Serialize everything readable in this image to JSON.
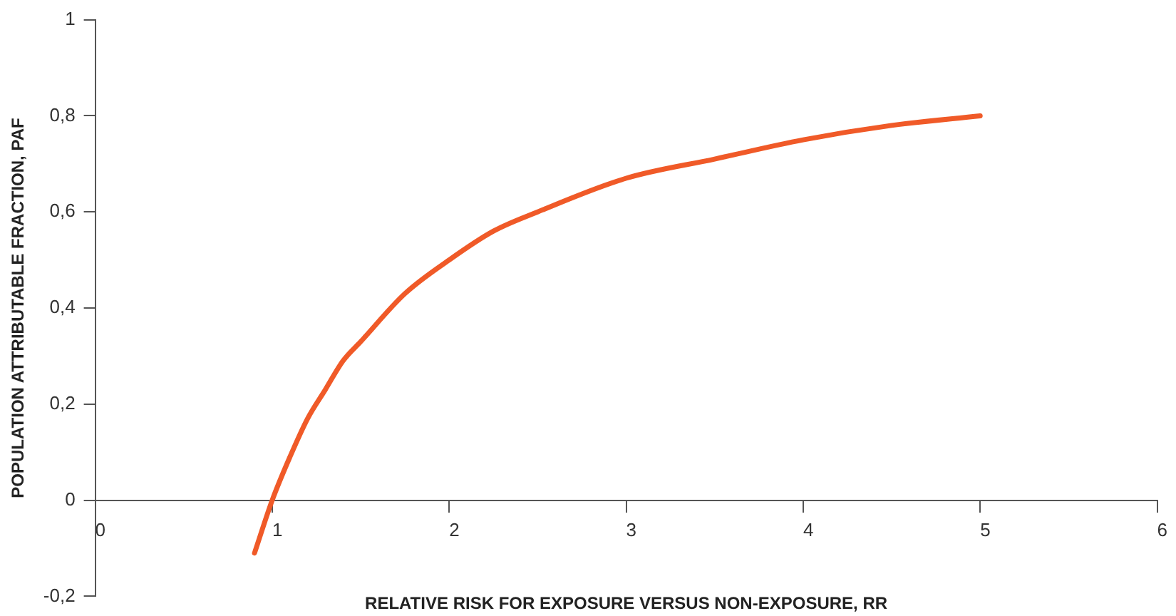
{
  "chart_data": {
    "type": "line",
    "xlabel": "RELATIVE RISK FOR EXPOSURE VERSUS NON-EXPOSURE, RR",
    "ylabel": "POPULATION ATTRIBUTABLE FRACTION, PAF",
    "x": [
      0.9,
      1,
      1.1,
      1.2,
      1.3,
      1.4,
      1.5,
      1.75,
      2,
      2.25,
      2.5,
      3,
      3.5,
      4,
      4.5,
      5
    ],
    "series": [
      {
        "color": "#f05a28",
        "values": [
          -0.11,
          0,
          0.09,
          0.17,
          0.23,
          0.29,
          0.33,
          0.43,
          0.5,
          0.56,
          0.6,
          0.67,
          0.71,
          0.75,
          0.78,
          0.8
        ]
      }
    ],
    "xlim": [
      0,
      6
    ],
    "xticks": [
      0,
      1,
      2,
      3,
      4,
      5,
      6
    ],
    "ylim": [
      -0.2,
      1
    ],
    "yticks": [
      {
        "value": -0.2,
        "label": "-0,2"
      },
      0,
      {
        "value": 0.2,
        "label": "0,2"
      },
      {
        "value": 0.4,
        "label": "0,4"
      },
      {
        "value": 0.6,
        "label": "0,6"
      },
      {
        "value": 0.8,
        "label": "0,8"
      },
      1
    ],
    "grid": false,
    "legend": false,
    "marker": "none",
    "line_style": "solid"
  }
}
